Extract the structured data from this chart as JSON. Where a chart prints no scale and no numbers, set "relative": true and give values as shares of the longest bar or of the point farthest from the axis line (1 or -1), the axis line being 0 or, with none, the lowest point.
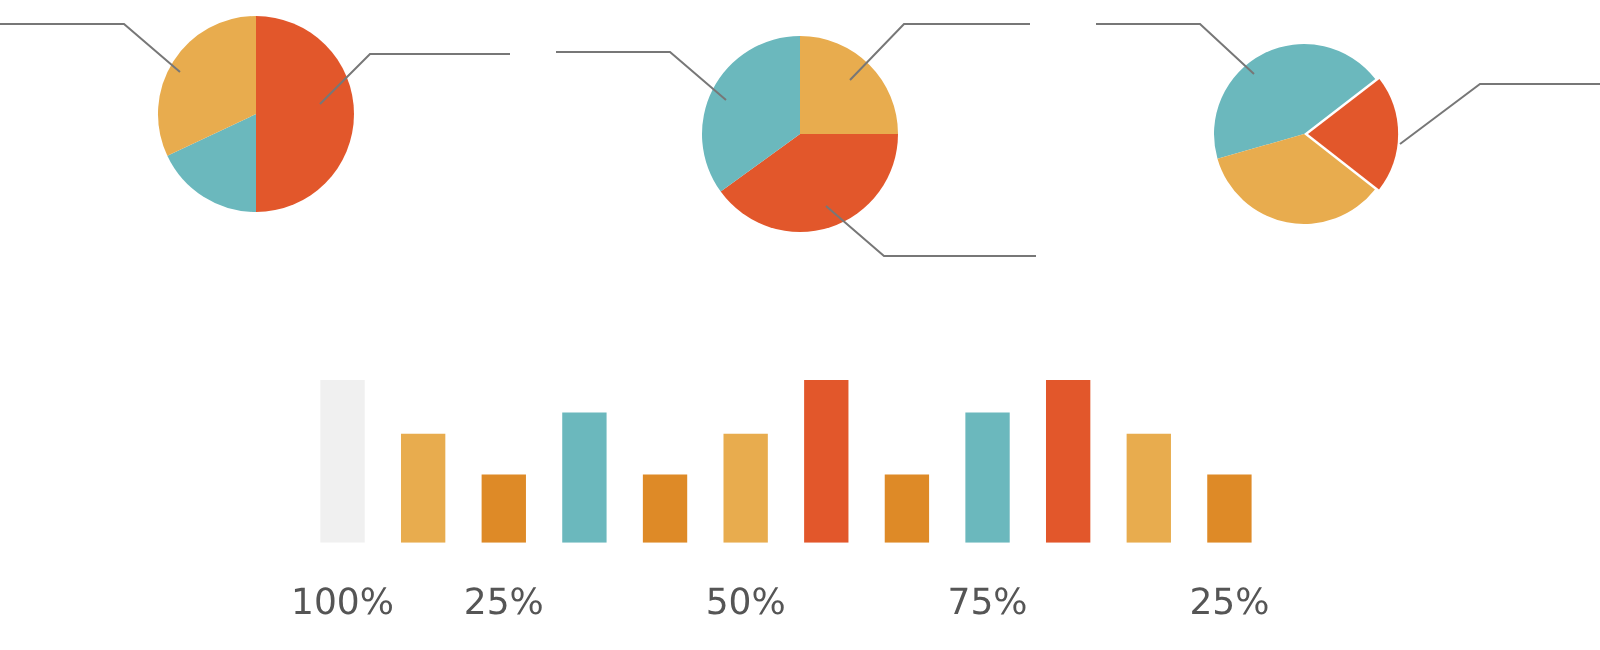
{
  "chart_data": [
    {
      "type": "pie",
      "categories": [
        null,
        null,
        null
      ],
      "values": [
        50,
        18,
        32
      ],
      "colors": [
        "#e2572b",
        "#6bb8bd",
        "#e8ac4e"
      ]
    },
    {
      "type": "pie",
      "categories": [
        null,
        null,
        null
      ],
      "values": [
        25,
        40,
        35
      ],
      "colors": [
        "#e8ac4e",
        "#e2572b",
        "#6bb8bd"
      ]
    },
    {
      "type": "pie",
      "categories": [
        null,
        null,
        null
      ],
      "values": [
        44,
        21,
        35
      ],
      "colors": [
        "#6bb8bd",
        "#e2572b",
        "#e8ac4e"
      ]
    },
    {
      "type": "bar",
      "relative": true,
      "categories": [
        "100%",
        null,
        "25%",
        null,
        null,
        "50%",
        null,
        null,
        "75%",
        null,
        null,
        "25%"
      ],
      "values": [
        1,
        0.67,
        0.42,
        0.8,
        0.42,
        0.67,
        1,
        0.42,
        0.8,
        1,
        0.67,
        0.42
      ],
      "colors": [
        "#f0f0f0",
        "#e8ac4e",
        "#de8a27",
        "#6bb8bd",
        "#de8a27",
        "#e8ac4e",
        "#e2572b",
        "#de8a27",
        "#6bb8bd",
        "#e2572b",
        "#e8ac4e",
        "#de8a27"
      ]
    }
  ]
}
